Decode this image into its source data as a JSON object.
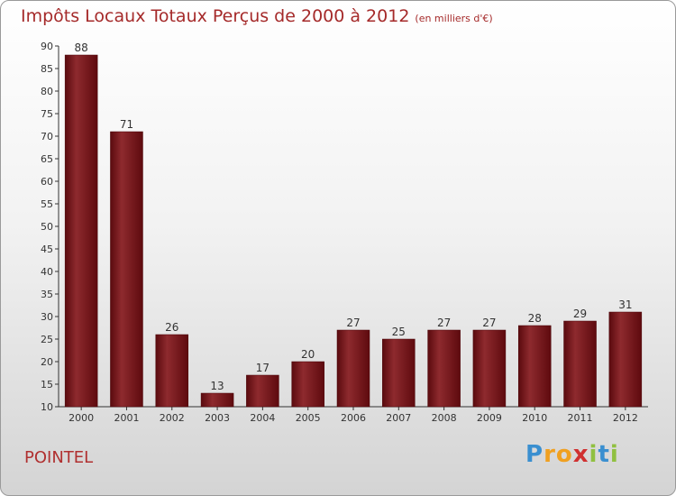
{
  "chart_data": {
    "type": "bar",
    "title": "Impôts Locaux Totaux Perçus de 2000 à 2012",
    "unit_label": "(en milliers d'€)",
    "categories": [
      "2000",
      "2001",
      "2002",
      "2003",
      "2004",
      "2005",
      "2006",
      "2007",
      "2008",
      "2009",
      "2010",
      "2011",
      "2012"
    ],
    "values": [
      88,
      71,
      26,
      13,
      17,
      20,
      27,
      25,
      27,
      27,
      28,
      29,
      31
    ],
    "ylim": [
      10,
      90
    ],
    "yticks": [
      10,
      15,
      20,
      25,
      30,
      35,
      40,
      45,
      50,
      55,
      60,
      65,
      70,
      75,
      80,
      85,
      90
    ],
    "grid": false,
    "legend": "none",
    "bar_color": "#7a0f14"
  },
  "location_name": "POINTEL",
  "brand": {
    "letters": [
      "P",
      "r",
      "o",
      "x",
      "i",
      "t",
      "i"
    ],
    "colors": [
      "#3a8fd0",
      "#f0a020",
      "#f0a020",
      "#d03030",
      "#90c040",
      "#3a8fd0",
      "#90c040"
    ]
  }
}
